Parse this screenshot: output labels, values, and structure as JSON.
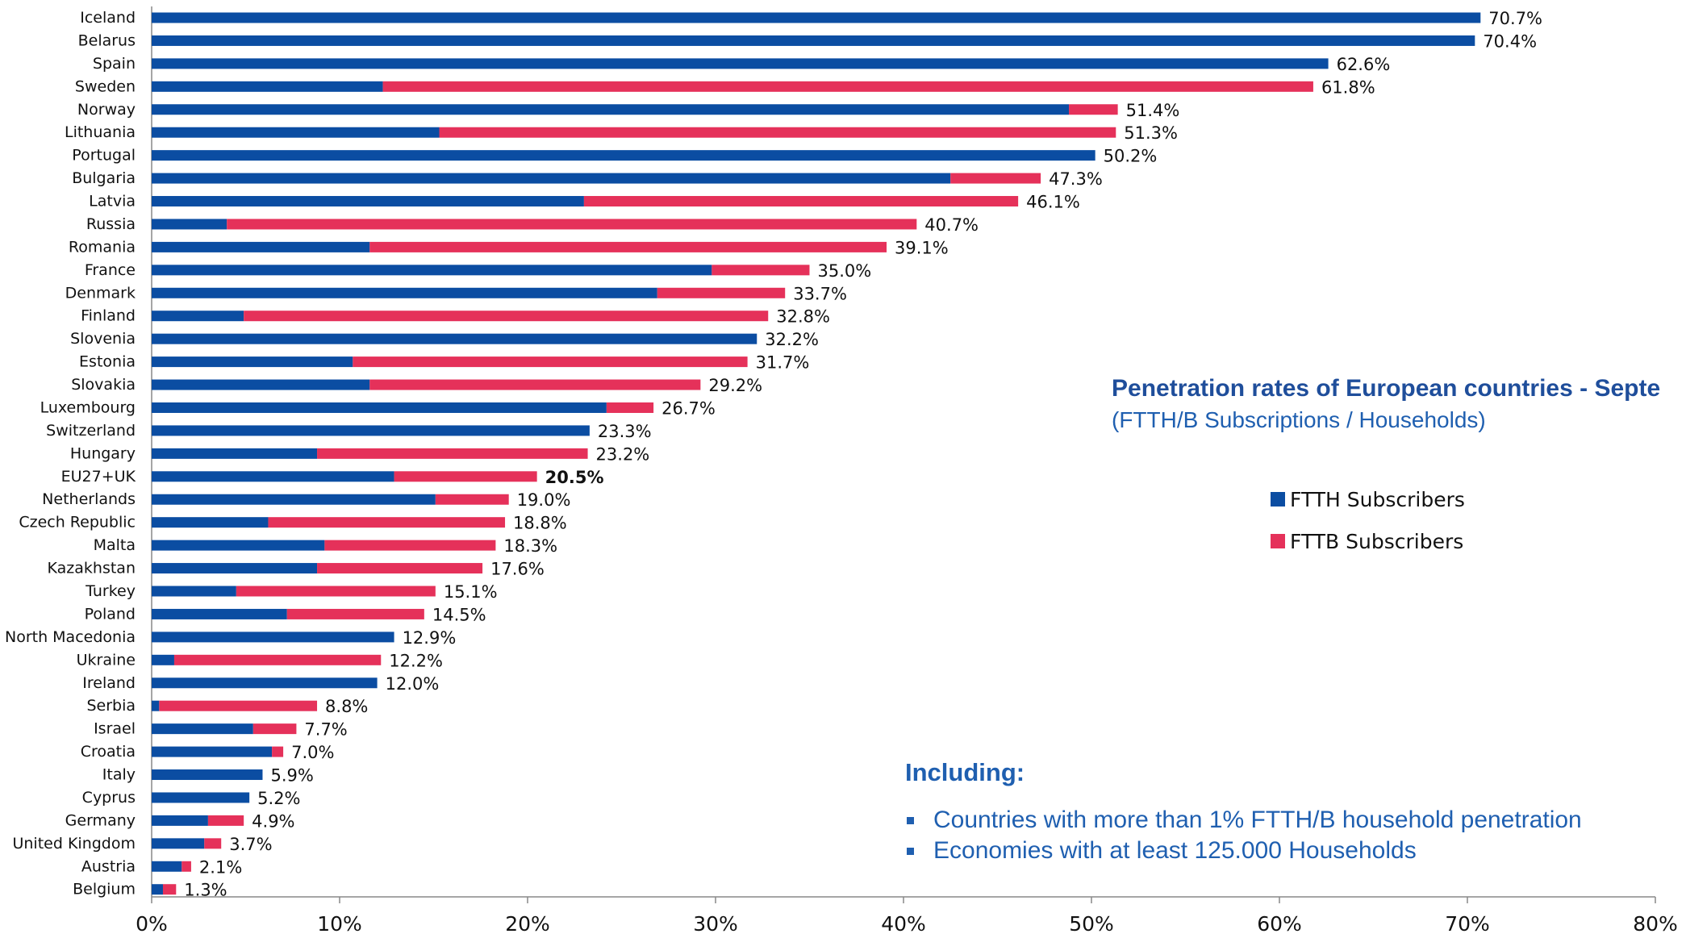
{
  "colors": {
    "ftth": "#0b4da2",
    "fttb": "#e5315a",
    "axis": "#888888",
    "text": "#111111"
  },
  "title": "Penetration rates of European countries - Septe",
  "subtitle": "(FTTH/B Subscriptions / Households)",
  "legend": {
    "ftth": "FTTH Subscribers",
    "fttb": "FTTB Subscribers"
  },
  "notes": {
    "heading": "Including:",
    "items": [
      "Countries with more than 1% FTTH/B household penetration",
      "Economies with at least 125.000 Households"
    ]
  },
  "chart_data": {
    "type": "bar",
    "orientation": "horizontal",
    "stacked": true,
    "xlim": [
      0,
      80
    ],
    "xticks": [
      "0%",
      "10%",
      "20%",
      "30%",
      "40%",
      "50%",
      "60%",
      "70%",
      "80%"
    ],
    "highlight_category": "EU27+UK",
    "categories": [
      "Iceland",
      "Belarus",
      "Spain",
      "Sweden",
      "Norway",
      "Lithuania",
      "Portugal",
      "Bulgaria",
      "Latvia",
      "Russia",
      "Romania",
      "France",
      "Denmark",
      "Finland",
      "Slovenia",
      "Estonia",
      "Slovakia",
      "Luxembourg",
      "Switzerland",
      "Hungary",
      "EU27+UK",
      "Netherlands",
      "Czech Republic",
      "Malta",
      "Kazakhstan",
      "Turkey",
      "Poland",
      "North Macedonia",
      "Ukraine",
      "Ireland",
      "Serbia",
      "Israel",
      "Croatia",
      "Italy",
      "Cyprus",
      "Germany",
      "United Kingdom",
      "Austria",
      "Belgium"
    ],
    "series": [
      {
        "name": "FTTH Subscribers",
        "values": [
          70.7,
          70.4,
          62.6,
          12.3,
          48.8,
          15.3,
          50.2,
          42.5,
          23.0,
          4.0,
          11.6,
          29.8,
          26.9,
          4.9,
          32.2,
          10.7,
          11.6,
          24.2,
          23.3,
          8.8,
          12.9,
          15.1,
          6.2,
          9.2,
          8.8,
          4.5,
          7.2,
          12.9,
          1.2,
          12.0,
          0.4,
          5.4,
          6.4,
          5.9,
          5.2,
          3.0,
          2.8,
          1.6,
          0.6
        ]
      },
      {
        "name": "FTTB Subscribers",
        "values": [
          0,
          0,
          0,
          49.5,
          2.6,
          36.0,
          0,
          4.8,
          23.1,
          36.7,
          27.5,
          5.2,
          6.8,
          27.9,
          0,
          21.0,
          17.6,
          2.5,
          0,
          14.4,
          7.6,
          3.9,
          12.6,
          9.1,
          8.8,
          10.6,
          7.3,
          0,
          11.0,
          0,
          8.4,
          2.3,
          0.6,
          0,
          0,
          1.9,
          0.9,
          0.5,
          0.7
        ]
      }
    ],
    "totals": [
      "70.7%",
      "70.4%",
      "62.6%",
      "61.8%",
      "51.4%",
      "51.3%",
      "50.2%",
      "47.3%",
      "46.1%",
      "40.7%",
      "39.1%",
      "35.0%",
      "33.7%",
      "32.8%",
      "32.2%",
      "31.7%",
      "29.2%",
      "26.7%",
      "23.3%",
      "23.2%",
      "20.5%",
      "19.0%",
      "18.8%",
      "18.3%",
      "17.6%",
      "15.1%",
      "14.5%",
      "12.9%",
      "12.2%",
      "12.0%",
      "8.8%",
      "7.7%",
      "7.0%",
      "5.9%",
      "5.2%",
      "4.9%",
      "3.7%",
      "2.1%",
      "1.3%"
    ]
  }
}
